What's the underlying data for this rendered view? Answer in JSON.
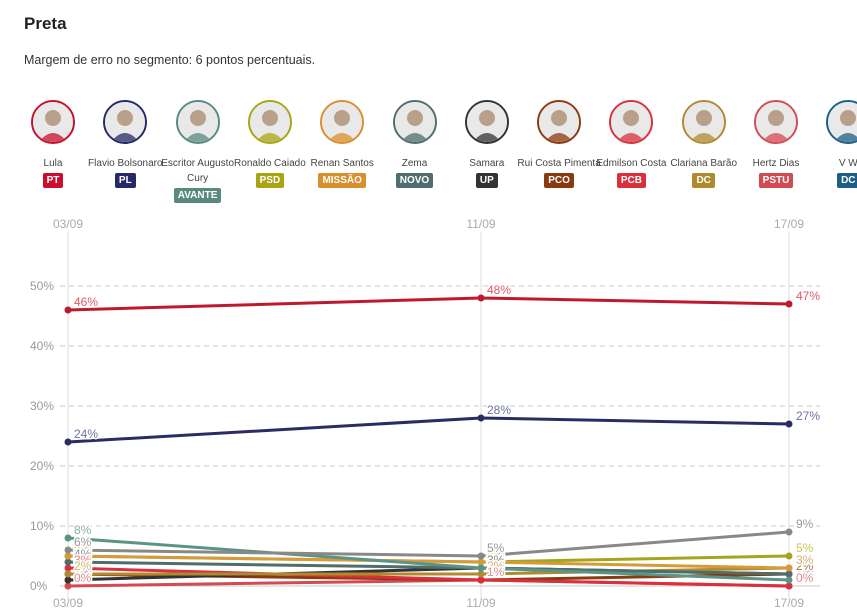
{
  "title": "Preta",
  "subtitle": "Margem de erro no segmento: 6 pontos percentuais.",
  "candidates": [
    {
      "name": "Lula",
      "party": "PT",
      "color": "#c8102e",
      "icon": "lula-avatar-icon"
    },
    {
      "name": "Flavio Bolsonaro",
      "party": "PL",
      "color": "#252a67",
      "icon": "flavio-bolsonaro-avatar-icon"
    },
    {
      "name": "Escritor Augusto Cury",
      "party": "AVANTE",
      "color": "#5a8a7e",
      "icon": "augusto-cury-avatar-icon"
    },
    {
      "name": "Ronaldo Caiado",
      "party": "PSD",
      "color": "#a8a414",
      "icon": "ronaldo-caiado-avatar-icon"
    },
    {
      "name": "Renan Santos",
      "party": "MISSÃO",
      "color": "#d98f2b",
      "icon": "renan-santos-avatar-icon"
    },
    {
      "name": "Zema",
      "party": "NOVO",
      "color": "#4f6e6d",
      "icon": "zema-avatar-icon"
    },
    {
      "name": "Samara",
      "party": "UP",
      "color": "#333333",
      "icon": "samara-avatar-icon"
    },
    {
      "name": "Rui Costa Pimenta",
      "party": "PCO",
      "color": "#8b3a0f",
      "icon": "rui-costa-pimenta-avatar-icon"
    },
    {
      "name": "Edmilson Costa",
      "party": "PCB",
      "color": "#d9303c",
      "icon": "edmilson-costa-avatar-icon"
    },
    {
      "name": "Clariana Barão",
      "party": "DC",
      "color": "#b08a2e",
      "icon": "clariana-barao-avatar-icon"
    },
    {
      "name": "Hertz Dias",
      "party": "PSTU",
      "color": "#d44a52",
      "icon": "hertz-dias-avatar-icon"
    },
    {
      "name": "V W",
      "party": "DC",
      "color": "#1d5f84",
      "icon": "partial-avatar-icon"
    }
  ],
  "chart_data": {
    "type": "line",
    "x": [
      "03/09",
      "11/09",
      "17/09"
    ],
    "ylim": [
      0,
      50
    ],
    "yticks": [
      "0%",
      "10%",
      "20%",
      "30%",
      "40%",
      "50%"
    ],
    "grid": true,
    "series": [
      {
        "name": "Lula",
        "color": "#bd1a2e",
        "values": [
          46,
          48,
          47
        ],
        "labels": [
          "46%",
          "48%",
          "47%"
        ],
        "label_color": "#e05a66"
      },
      {
        "name": "Flavio Bolsonaro",
        "color": "#2a2c62",
        "values": [
          24,
          28,
          27
        ],
        "labels": [
          "24%",
          "28%",
          "27%"
        ],
        "label_color": "#6f72a6"
      },
      {
        "name": "Escritor Augusto Cury",
        "color": "#5b9484",
        "values": [
          8,
          3,
          1
        ],
        "labels": [
          "8%",
          "3%",
          "1%"
        ],
        "label_color": "#7fb2a4"
      },
      {
        "name": "Ronaldo Caiado",
        "color": "#a4a51c",
        "values": [
          5,
          4,
          5
        ],
        "labels": [
          "5%",
          "4%",
          "5%"
        ],
        "label_color": "#c7c84f"
      },
      {
        "name": "Renan Santos",
        "color": "#d79a3a",
        "values": [
          5,
          4,
          3
        ],
        "labels": [
          "5%",
          "4%",
          "3%"
        ],
        "label_color": "#e0b46d"
      },
      {
        "name": "Zema",
        "color": "#4e6e6c",
        "values": [
          4,
          3,
          2
        ],
        "labels": [
          "4%",
          "3%",
          "2%"
        ],
        "label_color": "#7c9998"
      },
      {
        "name": "Samara",
        "color": "#333333",
        "values": [
          1,
          3,
          2
        ],
        "labels": [
          "1%",
          "3%",
          "2%"
        ],
        "label_color": "#888888"
      },
      {
        "name": "Rui Costa Pimenta",
        "color": "#8b3a0f",
        "values": [
          2,
          1,
          2
        ],
        "labels": [
          "2%",
          "1%",
          "2%"
        ],
        "label_color": "#b26a45"
      },
      {
        "name": "Edmilson Costa",
        "color": "#d9303c",
        "values": [
          3,
          1,
          0
        ],
        "labels": [
          "3%",
          "1%",
          "0%"
        ],
        "label_color": "#e57b82"
      },
      {
        "name": "Clariana Barão",
        "color": "#b08a2e",
        "values": [
          2,
          2,
          3
        ],
        "labels": [
          "2%",
          "2%",
          "3%"
        ],
        "label_color": "#d4b36a"
      },
      {
        "name": "Hertz Dias",
        "color": "#d44a52",
        "values": [
          0,
          1,
          0
        ],
        "labels": [
          "0%",
          "1%",
          "0%"
        ],
        "label_color": "#e38a90"
      },
      {
        "name": "V W",
        "color": "#888888",
        "values": [
          6,
          5,
          9
        ],
        "labels": [
          "6%",
          "5%",
          "9%"
        ],
        "label_color": "#999999"
      }
    ]
  }
}
